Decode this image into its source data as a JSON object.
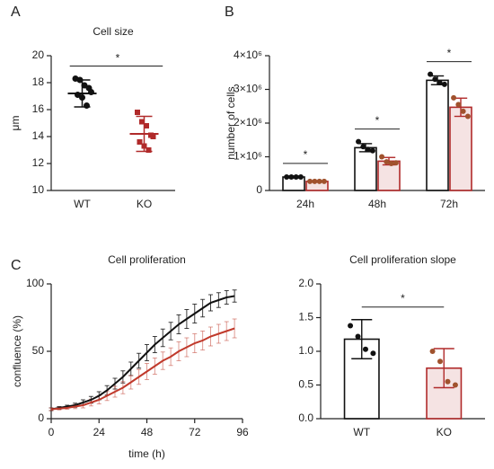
{
  "chart_data": [
    {
      "type": "strip",
      "panel": "A",
      "title": "Cell size",
      "ylabel": "μm",
      "categories": [
        "WT",
        "KO"
      ],
      "colors": [
        "#111111",
        "#b02a2a"
      ],
      "points": [
        [
          18.3,
          18.2,
          17.8,
          17.6,
          17.1,
          16.9,
          16.3,
          17.3
        ],
        [
          15.8,
          15.1,
          14.8,
          14.1,
          13.6,
          13.3,
          13.0,
          14.0
        ]
      ],
      "means": [
        17.2,
        14.2
      ],
      "errors": [
        1.0,
        1.3
      ],
      "ylim": [
        10,
        20
      ],
      "yticks": [
        10,
        12,
        14,
        16,
        18,
        20
      ],
      "annotation": "*"
    },
    {
      "type": "bar",
      "panel": "B",
      "ylabel": "number of cells",
      "categories": [
        "24h",
        "48h",
        "72h"
      ],
      "series": [
        {
          "color": "#111111",
          "values": [
            400000,
            1270000,
            3270000
          ],
          "errors": [
            30000,
            120000,
            130000
          ],
          "points": [
            [
              400000,
              400000,
              400000,
              400000
            ],
            [
              1450000,
              1300000,
              1220000,
              1180000
            ],
            [
              3450000,
              3300000,
              3200000,
              3150000
            ]
          ]
        },
        {
          "color": "#b02a2a",
          "values": [
            270000,
            870000,
            2470000
          ],
          "errors": [
            20000,
            110000,
            270000
          ],
          "points": [
            [
              270000,
              270000,
              270000,
              270000
            ],
            [
              1000000,
              850000,
              800000,
              820000
            ],
            [
              2750000,
              2550000,
              2350000,
              2200000
            ]
          ]
        }
      ],
      "ylim": [
        0,
        4000000
      ],
      "yticks": [
        0,
        {
          "value": 1000000,
          "label": "1×10⁶"
        },
        {
          "value": 2000000,
          "label": "2×10⁶"
        },
        {
          "value": 3000000,
          "label": "3×10⁶"
        },
        {
          "value": 4000000,
          "label": "4×10⁶"
        }
      ],
      "annotations": [
        "*",
        "*",
        "*"
      ]
    },
    {
      "type": "line",
      "panel": "C",
      "title": "Cell proliferation",
      "xlabel": "time (h)",
      "ylabel": "confluence (%)",
      "x": [
        0,
        4,
        8,
        12,
        16,
        20,
        24,
        28,
        32,
        36,
        40,
        44,
        48,
        52,
        56,
        60,
        64,
        68,
        72,
        76,
        80,
        84,
        88,
        92
      ],
      "series": [
        {
          "color": "#111111",
          "values": [
            7,
            8,
            9,
            10,
            12,
            14,
            17,
            21,
            26,
            31,
            37,
            43,
            49,
            55,
            60,
            65,
            70,
            74,
            78,
            82,
            86,
            88,
            90,
            91
          ],
          "errors": [
            1,
            1,
            1,
            1.5,
            2,
            2.5,
            3,
            3.5,
            4,
            4.5,
            5,
            5.5,
            6,
            6,
            6.5,
            6.5,
            7,
            7,
            7,
            6.5,
            6,
            5.5,
            5,
            4.5
          ]
        },
        {
          "color": "#c0392b",
          "values": [
            7,
            7.5,
            8,
            9,
            10,
            12,
            14,
            17,
            20,
            23,
            27,
            31,
            35,
            39,
            43,
            46,
            50,
            53,
            56,
            58,
            61,
            63,
            65,
            67
          ],
          "errors": [
            1,
            1,
            1,
            1.5,
            2,
            2.5,
            3,
            3.5,
            4,
            4.5,
            5,
            5.5,
            6,
            6,
            6.5,
            6.5,
            7,
            7,
            7,
            7,
            7,
            7,
            7,
            7
          ]
        }
      ],
      "xlim": [
        0,
        96
      ],
      "xticks": [
        0,
        24,
        48,
        72,
        96
      ],
      "ylim": [
        0,
        100
      ],
      "yticks": [
        0,
        50,
        100
      ]
    },
    {
      "type": "bar",
      "title": "Cell proliferation slope",
      "categories": [
        "WT",
        "KO"
      ],
      "colors": [
        "#111111",
        "#b02a2a"
      ],
      "values": [
        1.18,
        0.75
      ],
      "errors": [
        0.29,
        0.29
      ],
      "points": [
        [
          1.38,
          1.22,
          1.03,
          0.97
        ],
        [
          1.0,
          0.85,
          0.55,
          0.5
        ]
      ],
      "ylim": [
        0,
        2
      ],
      "yticks": [
        {
          "value": 0,
          "label": "0.0"
        },
        {
          "value": 0.5,
          "label": "0.5"
        },
        {
          "value": 1,
          "label": "1.0"
        },
        {
          "value": 1.5,
          "label": "1.5"
        },
        {
          "value": 2,
          "label": "2.0"
        }
      ],
      "annotation": "*"
    }
  ]
}
